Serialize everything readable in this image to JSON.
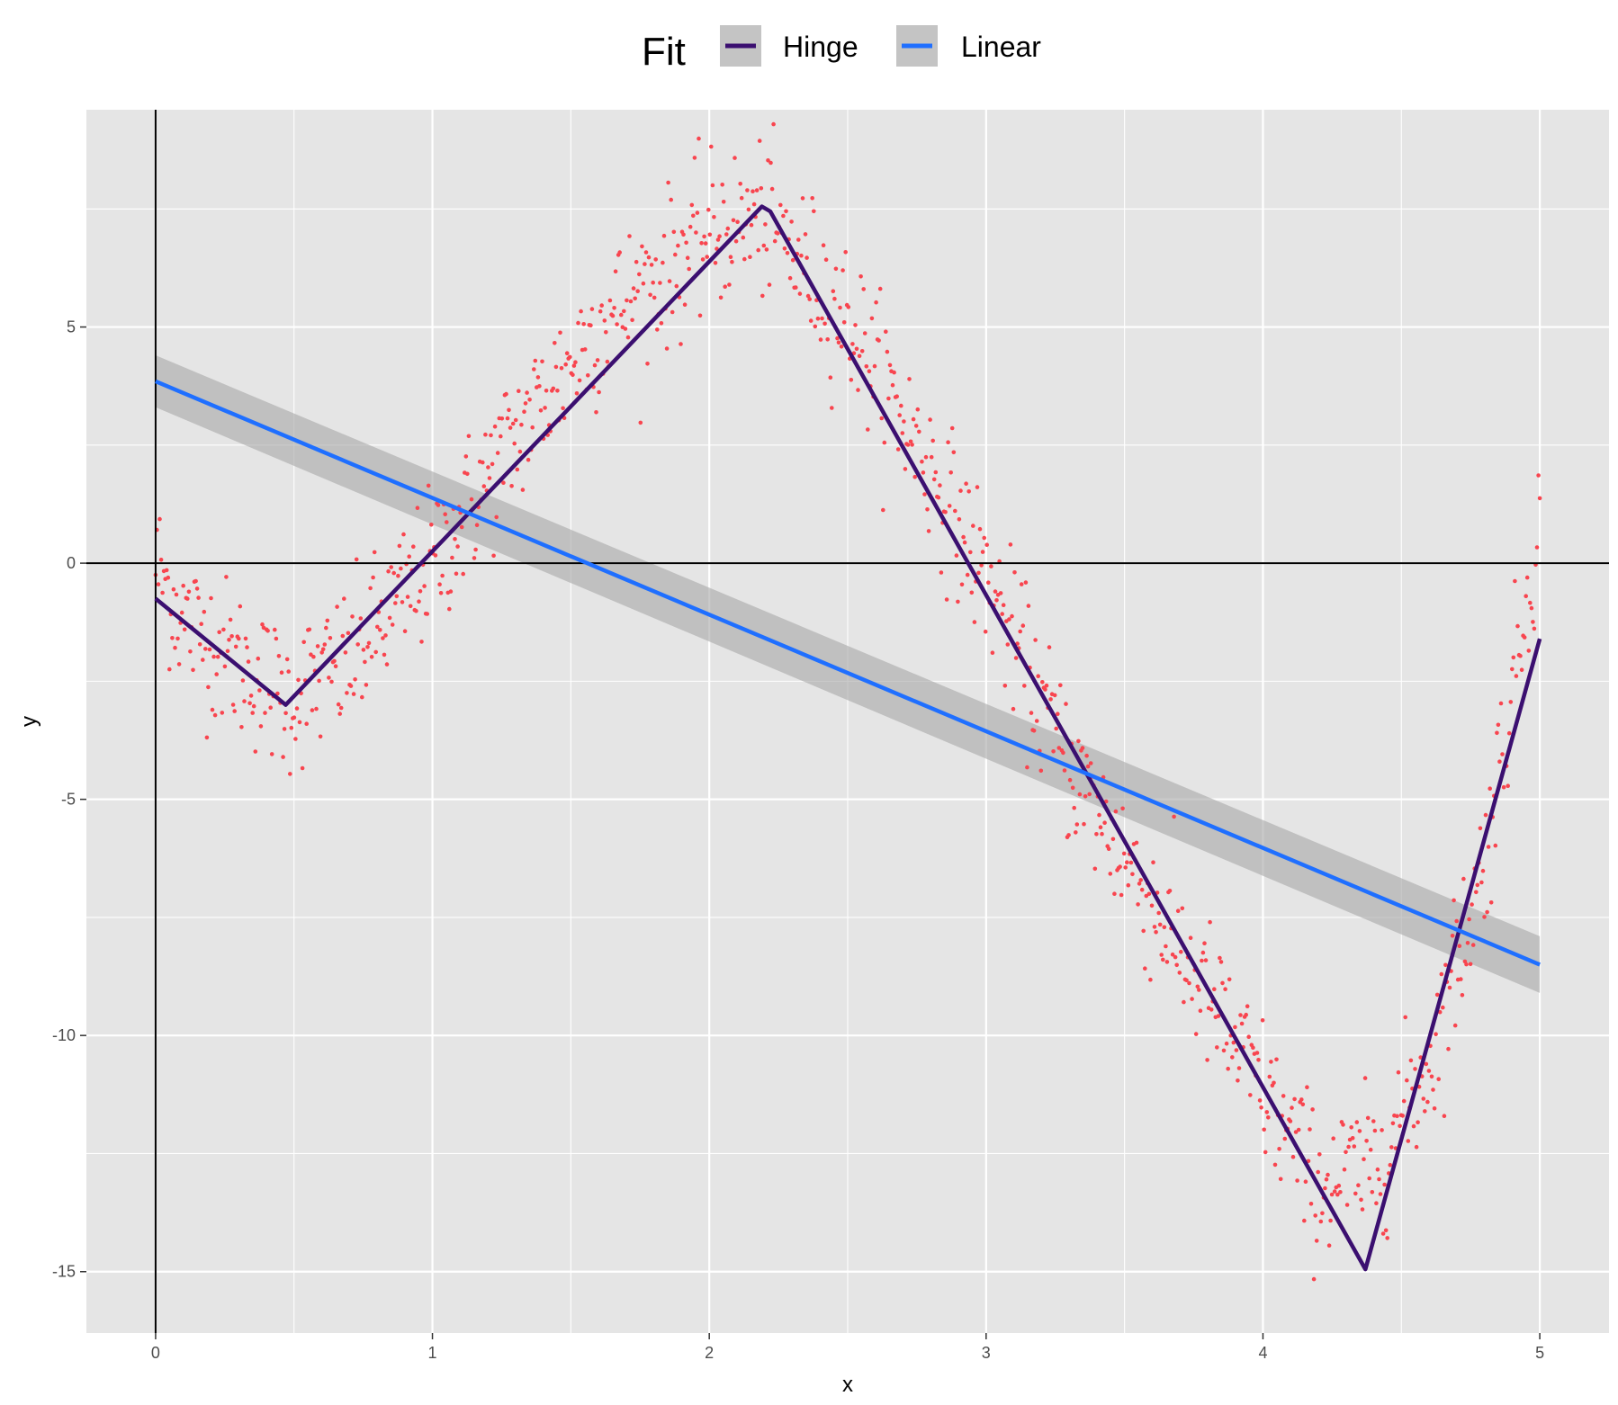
{
  "chart_data": {
    "type": "scatter",
    "title": "",
    "xlabel": "x",
    "ylabel": "y",
    "xlim": [
      -0.25,
      5.25
    ],
    "ylim": [
      -16.3,
      9.6
    ],
    "x_ticks": [
      0,
      1,
      2,
      3,
      4,
      5
    ],
    "y_ticks": [
      -15,
      -10,
      -5,
      0,
      5
    ],
    "x_tick_labels": [
      "0",
      "1",
      "2",
      "3",
      "4",
      "5"
    ],
    "y_tick_labels": [
      "-15",
      "-10",
      "-5",
      "0",
      "5"
    ],
    "grid": true,
    "reference_lines": {
      "vertical_x": 0,
      "horizontal_y": 0
    },
    "legend": {
      "title": "Fit",
      "position": "top",
      "entries": [
        {
          "label": "Hinge",
          "color": "#3b0f70"
        },
        {
          "label": "Linear",
          "color": "#1f6fff"
        }
      ]
    },
    "colors": {
      "points": "#f8454f",
      "hinge": "#3b0f70",
      "linear": "#1f6fff",
      "ribbon": "#a6a6a6",
      "panel": "#e5e5e5",
      "grid": "#ffffff"
    },
    "points_description_count": 1000,
    "points_model": {
      "amplitude_left": 3.0,
      "pattern": "y ≈ 1.0*x*sin(2.0*x)... noisy sine-like growing oscillation",
      "noise_sd": 0.8
    },
    "series": [
      {
        "name": "Hinge",
        "type": "line",
        "x": [
          0,
          0.47,
          2.19,
          2.22,
          4.37,
          5.0
        ],
        "y": [
          -0.75,
          -3.0,
          7.55,
          7.45,
          -14.95,
          -1.6
        ]
      },
      {
        "name": "Linear",
        "type": "line",
        "x": [
          0,
          5.0
        ],
        "y": [
          3.85,
          -8.5
        ],
        "ribbon_upper": [
          4.4,
          -7.9
        ],
        "ribbon_lower": [
          3.3,
          -9.1
        ]
      }
    ]
  }
}
